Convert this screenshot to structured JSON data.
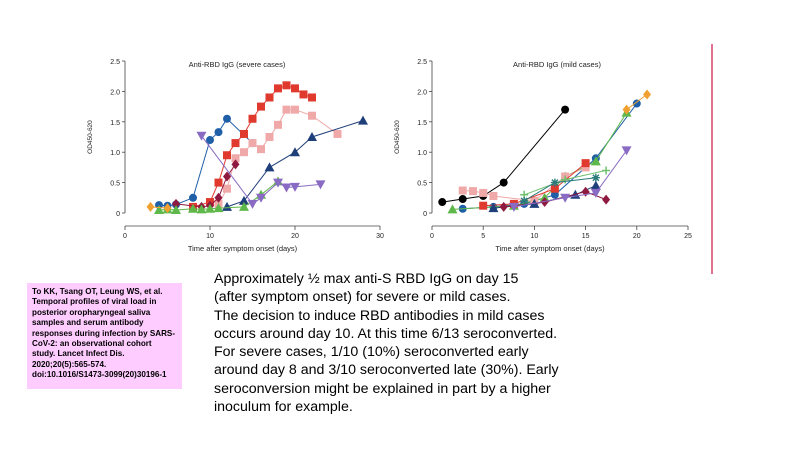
{
  "chart_data": [
    {
      "type": "line",
      "title": "Anti-RBD IgG (severe cases)",
      "xlabel": "Time after symptom onset (days)",
      "ylabel": "OD450-620",
      "xlim": [
        0,
        30
      ],
      "ylim": [
        0,
        2.5
      ],
      "x_ticks": [
        "0",
        "10",
        "20",
        "30"
      ],
      "y_ticks": [
        "0",
        "0.5",
        "1.0",
        "1.5",
        "2.0",
        "2.5"
      ],
      "grid": false,
      "legend": "none",
      "series": [
        {
          "color": "#1f5fa8",
          "marker": "circle",
          "x": [
            4,
            5,
            6,
            8,
            10,
            11,
            12,
            15
          ],
          "y": [
            0.13,
            0.12,
            0.14,
            0.25,
            1.2,
            1.33,
            1.55,
            1.15
          ]
        },
        {
          "color": "#e03a2f",
          "marker": "square",
          "x": [
            8,
            10,
            11,
            12,
            13,
            14,
            15,
            16,
            17,
            18,
            19,
            20,
            21,
            22
          ],
          "y": [
            0.1,
            0.18,
            0.5,
            0.95,
            1.15,
            1.3,
            1.55,
            1.75,
            1.9,
            2.05,
            2.1,
            2.05,
            1.95,
            1.9
          ]
        },
        {
          "color": "#f0a9a9",
          "marker": "square",
          "x": [
            11,
            12,
            13,
            14,
            15,
            16,
            17,
            18,
            19,
            20,
            22,
            25
          ],
          "y": [
            0.15,
            0.4,
            0.9,
            1.0,
            1.15,
            1.05,
            1.25,
            1.45,
            1.7,
            1.7,
            1.6,
            1.3
          ]
        },
        {
          "color": "#1f3f7a",
          "marker": "triangle",
          "x": [
            12,
            14,
            17,
            20,
            22,
            28
          ],
          "y": [
            0.1,
            0.2,
            0.75,
            1.0,
            1.25,
            1.52
          ]
        },
        {
          "color": "#8e1a3f",
          "marker": "diamond",
          "x": [
            6,
            9,
            10,
            11,
            12,
            13
          ],
          "y": [
            0.15,
            0.1,
            0.12,
            0.25,
            0.6,
            0.8
          ]
        },
        {
          "color": "#5fb84a",
          "marker": "triangle",
          "x": [
            4,
            5,
            6,
            8,
            9,
            10,
            11,
            14,
            16,
            18
          ],
          "y": [
            0.05,
            0.06,
            0.05,
            0.07,
            0.06,
            0.07,
            0.08,
            0.1,
            0.3,
            0.52
          ]
        },
        {
          "color": "#8a6bc4",
          "marker": "triangle-down",
          "x": [
            9,
            15,
            16,
            18,
            19,
            20,
            23
          ],
          "y": [
            1.27,
            0.15,
            0.25,
            0.5,
            0.42,
            0.43,
            0.47
          ]
        },
        {
          "color": "#f0a030",
          "marker": "diamond",
          "x": [
            3,
            5
          ],
          "y": [
            0.1,
            0.08
          ]
        }
      ]
    },
    {
      "type": "line",
      "title": "Anti-RBD IgG (mild cases)",
      "xlabel": "Time after symptom onset (days)",
      "ylabel": "OD450-620",
      "xlim": [
        0,
        25
      ],
      "ylim": [
        0,
        2.5
      ],
      "x_ticks": [
        "0",
        "5",
        "10",
        "15",
        "20",
        "25"
      ],
      "y_ticks": [
        "0",
        "0.5",
        "1.0",
        "1.5",
        "2.0",
        "2.5"
      ],
      "grid": false,
      "legend": "none",
      "series": [
        {
          "color": "#000000",
          "marker": "circle",
          "x": [
            1,
            3,
            5,
            7,
            13
          ],
          "y": [
            0.18,
            0.23,
            0.28,
            0.5,
            1.7
          ]
        },
        {
          "color": "#1f5fa8",
          "marker": "circle",
          "x": [
            3,
            6,
            9,
            12,
            16,
            20
          ],
          "y": [
            0.07,
            0.1,
            0.15,
            0.3,
            0.9,
            1.8
          ]
        },
        {
          "color": "#5fb84a",
          "marker": "triangle",
          "x": [
            2,
            8,
            11,
            13,
            16,
            19
          ],
          "y": [
            0.06,
            0.12,
            0.25,
            0.6,
            0.85,
            1.65
          ]
        },
        {
          "color": "#f0a9a9",
          "marker": "square",
          "x": [
            3,
            4,
            5,
            6,
            10,
            13,
            15
          ],
          "y": [
            0.37,
            0.36,
            0.33,
            0.28,
            0.2,
            0.6,
            0.75
          ]
        },
        {
          "color": "#e03a2f",
          "marker": "square",
          "x": [
            5,
            8,
            12,
            15
          ],
          "y": [
            0.12,
            0.15,
            0.4,
            0.82
          ]
        },
        {
          "color": "#1f3f7a",
          "marker": "triangle",
          "x": [
            6,
            10,
            14,
            16
          ],
          "y": [
            0.08,
            0.15,
            0.3,
            0.45
          ]
        },
        {
          "color": "#8e1a3f",
          "marker": "diamond",
          "x": [
            7,
            11,
            15,
            17
          ],
          "y": [
            0.1,
            0.18,
            0.35,
            0.22
          ]
        },
        {
          "color": "#8a6bc4",
          "marker": "triangle-down",
          "x": [
            8,
            13,
            16,
            19
          ],
          "y": [
            0.1,
            0.25,
            0.33,
            1.03
          ]
        },
        {
          "color": "#70c070",
          "marker": "plus",
          "x": [
            9,
            13,
            17
          ],
          "y": [
            0.3,
            0.55,
            0.7
          ]
        },
        {
          "color": "#2a7a7a",
          "marker": "star",
          "x": [
            9,
            12,
            16
          ],
          "y": [
            0.2,
            0.5,
            0.58
          ]
        },
        {
          "color": "#f0a030",
          "marker": "diamond",
          "x": [
            19,
            21
          ],
          "y": [
            1.7,
            1.95
          ]
        }
      ]
    }
  ],
  "citation": "To KK, Tsang OT, Leung WS, et al. Temporal profiles of viral load in posterior oropharyngeal saliva samples and serum antibody responses during infection by SARS-CoV-2: an observational cohort study. Lancet Infect Dis. 2020;20(5):565-574. doi:10.1016/S1473-3099(20)30196-1",
  "notes": [
    "Approximately ½ max  anti-S RBD IgG on day 15",
    "(after symptom onset) for severe or mild cases.",
    "The decision to induce RBD antibodies in mild cases",
    "occurs around day 10.  At this time 6/13 seroconverted.",
    "For severe cases, 1/10 (10%) seroconverted early",
    "around day 8 and 3/10 seroconverted late (30%).    Early",
    "seroconversion might be explained in part by a higher",
    "inoculum for example."
  ],
  "colors": {
    "citation_background": "#ffccff",
    "divider": "#e0728f"
  }
}
